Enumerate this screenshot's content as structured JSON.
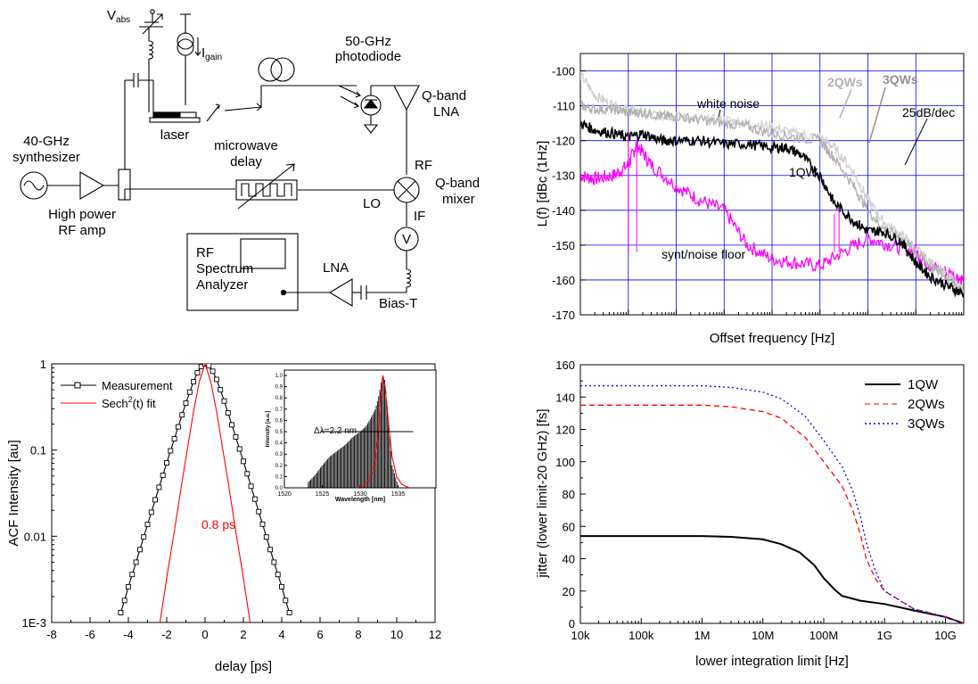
{
  "schematic": {
    "synth_label": [
      "40-GHz",
      "synthesizer"
    ],
    "amp_label": [
      "High power",
      "RF amp"
    ],
    "vabs_main": "V",
    "vabs_sub": "abs",
    "igain_main": "I",
    "igain_sub": "gain",
    "laser_label": "laser",
    "photodiode_label": [
      "50-GHz",
      "photodiode"
    ],
    "qlna_label": [
      "Q-band",
      "LNA"
    ],
    "delay_label": [
      "microwave",
      "delay"
    ],
    "rf_port": "RF",
    "mixer_label": [
      "Q-band",
      "mixer"
    ],
    "lo_port": "LO",
    "if_port": "IF",
    "voltmeter": "V",
    "lna_label": "LNA",
    "biast_label": "Bias-T",
    "analyzer_label": [
      "RF",
      "Spectrum",
      "Analyzer"
    ]
  },
  "chart_data": [
    {
      "type": "line",
      "id": "acf",
      "xlabel": "delay [ps]",
      "ylabel": "ACF Intensity [au]",
      "xlim": [
        -8,
        12
      ],
      "ylim": [
        0.001,
        1
      ],
      "yscale": "log",
      "xticks": [
        "-8",
        "-6",
        "-4",
        "-2",
        "0",
        "2",
        "4",
        "6",
        "8",
        "10",
        "12"
      ],
      "yticks": [
        "1E-3",
        "0.01",
        "0.1",
        "1"
      ],
      "legend": [
        {
          "label_pre": "Measurement",
          "label_sup": "",
          "label_post": "",
          "color": "#000000"
        },
        {
          "label_pre": "Sech",
          "label_sup": "2",
          "label_post": "(t) fit",
          "color": "#ff0000"
        }
      ],
      "annotation": "0.8 ps",
      "series": [
        {
          "name": "Measurement",
          "color": "#000000",
          "marker": "square",
          "x": [
            -4.4,
            -4.2,
            -4.0,
            -3.8,
            -3.6,
            -3.4,
            -3.2,
            -3.0,
            -2.8,
            -2.6,
            -2.4,
            -2.2,
            -2.0,
            -1.8,
            -1.6,
            -1.4,
            -1.2,
            -1.0,
            -0.8,
            -0.6,
            -0.4,
            -0.2,
            0.0,
            0.2,
            0.4,
            0.6,
            0.8,
            1.0,
            1.2,
            1.4,
            1.6,
            1.8,
            2.0,
            2.2,
            2.4,
            2.6,
            2.8,
            3.0,
            3.2,
            3.4,
            3.6,
            3.8,
            4.0,
            4.2,
            4.4
          ],
          "y": [
            0.0013,
            0.0018,
            0.0026,
            0.0036,
            0.005,
            0.007,
            0.0098,
            0.0137,
            0.019,
            0.0265,
            0.037,
            0.051,
            0.071,
            0.098,
            0.135,
            0.186,
            0.256,
            0.35,
            0.47,
            0.62,
            0.79,
            0.93,
            1.0,
            0.95,
            0.82,
            0.66,
            0.5,
            0.37,
            0.27,
            0.196,
            0.142,
            0.103,
            0.074,
            0.053,
            0.038,
            0.027,
            0.0193,
            0.0138,
            0.0098,
            0.007,
            0.005,
            0.0036,
            0.0026,
            0.0018,
            0.0013
          ]
        },
        {
          "name": "Sech2(t) fit",
          "color": "#ff0000",
          "marker": "none",
          "x": [
            -2.35,
            -2.0,
            -1.6,
            -1.2,
            -0.9,
            -0.6,
            -0.3,
            0.0,
            0.3,
            0.6,
            0.9,
            1.2,
            1.6,
            2.0,
            2.35
          ],
          "y": [
            0.001,
            0.0033,
            0.0115,
            0.043,
            0.11,
            0.28,
            0.62,
            1.0,
            0.62,
            0.28,
            0.11,
            0.043,
            0.0115,
            0.0033,
            0.001
          ]
        }
      ],
      "inset": {
        "xlabel": "Wavelength [nm]",
        "ylabel": "Intensity [a.u.]",
        "xlim": [
          1520,
          1540
        ],
        "ylim": [
          0,
          1.0
        ],
        "xticks": [
          "1520",
          "1525",
          "1530",
          "1535"
        ],
        "yticks": [
          "0.0",
          "0.1",
          "0.2",
          "0.3",
          "0.4",
          "0.5",
          "0.6",
          "0.7",
          "0.8",
          "0.9",
          "1.0"
        ],
        "annotation": "Δλ=2.2 nm",
        "fwhm_level": 0.5,
        "fwhm_x": [
          1524.8,
          1537.0
        ],
        "spectrum": {
          "x": [
            1523.0,
            1524.0,
            1525.0,
            1526.0,
            1527.0,
            1528.0,
            1529.0,
            1530.0,
            1530.8,
            1531.4,
            1532.0,
            1532.4,
            1532.8,
            1533.0,
            1533.3,
            1533.7,
            1534.2,
            1535.0
          ],
          "y": [
            0.04,
            0.11,
            0.2,
            0.28,
            0.33,
            0.38,
            0.45,
            0.5,
            0.55,
            0.62,
            0.7,
            0.8,
            0.95,
            1.0,
            0.95,
            0.6,
            0.2,
            0.02
          ]
        },
        "fit": {
          "x": [
            1529.5,
            1530.5,
            1531.2,
            1531.8,
            1532.3,
            1532.7,
            1533.0,
            1533.3,
            1533.7,
            1534.2,
            1534.8,
            1535.5,
            1536.5
          ],
          "y": [
            0.0,
            0.02,
            0.07,
            0.18,
            0.42,
            0.82,
            1.0,
            0.9,
            0.6,
            0.28,
            0.1,
            0.03,
            0.0
          ]
        }
      }
    },
    {
      "type": "line",
      "id": "phase-noise",
      "xlabel": "Offset frequency [Hz]",
      "ylabel": "L(f) [dBc (1Hz]",
      "xscale": "log",
      "xlim": [
        10,
        1000000000
      ],
      "ylim": [
        -170,
        -95
      ],
      "yticks": [
        "-100",
        "-110",
        "-120",
        "-130",
        "-140",
        "-150",
        "-160",
        "-170"
      ],
      "annotations": [
        "white noise",
        "2QWs",
        "3QWs",
        "25dB/dec",
        "1QW",
        "synt/noise floor"
      ],
      "series": [
        {
          "name": "1QW",
          "color": "#000000",
          "x": [
            10,
            20,
            50,
            100,
            200,
            500,
            1000,
            3000,
            10000,
            30000,
            100000,
            200000,
            400000,
            1000000,
            2000000,
            5000000,
            10000000,
            20000000,
            50000000,
            100000000,
            200000000,
            500000000,
            1000000000
          ],
          "y": [
            -115,
            -117,
            -118,
            -119,
            -118,
            -120,
            -120,
            -120,
            -121,
            -121,
            -122,
            -122,
            -124,
            -130,
            -138,
            -143,
            -146,
            -146,
            -149,
            -155,
            -159,
            -162,
            -164
          ]
        },
        {
          "name": "2QWs",
          "color": "#b0b0b0",
          "x": [
            10,
            20,
            50,
            100,
            200,
            500,
            1000,
            3000,
            10000,
            30000,
            100000,
            300000,
            1000000,
            2000000,
            5000000,
            10000000,
            20000000,
            50000000,
            100000000,
            200000000,
            500000000,
            1000000000
          ],
          "y": [
            -110,
            -111,
            -111,
            -112,
            -112,
            -113,
            -113,
            -114,
            -115,
            -116,
            -118,
            -119,
            -120,
            -125,
            -133,
            -140,
            -145,
            -148,
            -152,
            -156,
            -160,
            -164
          ]
        },
        {
          "name": "3QWs",
          "color": "#d0d0d0",
          "x": [
            10,
            20,
            50,
            100,
            200,
            500,
            1000,
            3000,
            10000,
            30000,
            100000,
            300000,
            1000000,
            2000000,
            5000000,
            10000000,
            20000000,
            50000000,
            100000000,
            200000000,
            500000000,
            1000000000
          ],
          "y": [
            -101,
            -107,
            -110,
            -111,
            -112,
            -113,
            -113,
            -114,
            -114,
            -115,
            -116,
            -118,
            -119,
            -122,
            -129,
            -137,
            -143,
            -147,
            -151,
            -155,
            -159,
            -163
          ]
        },
        {
          "name": "synt/noise floor",
          "color": "#ff00ff",
          "x": [
            10,
            20,
            50,
            100,
            150,
            300,
            1000,
            3000,
            10000,
            30000,
            100000,
            300000,
            1000000,
            3000000,
            10000000,
            30000000,
            100000000,
            200000000,
            500000000,
            1000000000
          ],
          "y": [
            -130,
            -131,
            -130,
            -127,
            -121,
            -127,
            -133,
            -137,
            -140,
            -150,
            -154,
            -155,
            -156,
            -152,
            -148,
            -150,
            -152,
            -156,
            -158,
            -160
          ]
        }
      ]
    },
    {
      "type": "line",
      "id": "jitter",
      "xlabel": "lower integration limit [Hz]",
      "ylabel": "jitter (lower limit-20 GHz) [fs]",
      "xscale": "log",
      "xlim": [
        10000,
        20000000000
      ],
      "ylim": [
        0,
        160
      ],
      "xticks": [
        "10k",
        "100k",
        "1M",
        "10M",
        "100M",
        "1G",
        "10G"
      ],
      "yticks": [
        "0",
        "20",
        "40",
        "60",
        "80",
        "100",
        "120",
        "140",
        "160"
      ],
      "series": [
        {
          "name": "1QW",
          "color": "#000000",
          "dash": "solid",
          "x": [
            10000,
            100000,
            1000000,
            3000000,
            10000000,
            20000000,
            40000000,
            70000000,
            100000000,
            150000000,
            200000000,
            400000000,
            1000000000,
            3000000000,
            10000000000,
            20000000000
          ],
          "y": [
            54,
            54,
            54,
            53.5,
            52,
            49,
            44,
            36,
            28,
            21,
            17,
            14,
            12,
            8,
            4,
            0
          ]
        },
        {
          "name": "2QWs",
          "color": "#ff0000",
          "dash": "dashed",
          "x": [
            10000,
            100000,
            1000000,
            3000000,
            10000000,
            20000000,
            50000000,
            100000000,
            200000000,
            300000000,
            400000000,
            500000000,
            700000000,
            1000000000,
            3000000000,
            10000000000,
            20000000000
          ],
          "y": [
            135,
            135,
            135,
            134,
            131,
            127,
            115,
            100,
            85,
            70,
            55,
            40,
            28,
            20,
            9,
            4,
            0
          ]
        },
        {
          "name": "3QWs",
          "color": "#0000ff",
          "dash": "dotted",
          "x": [
            10000,
            100000,
            1000000,
            3000000,
            10000000,
            20000000,
            50000000,
            100000000,
            200000000,
            300000000,
            400000000,
            500000000,
            700000000,
            1000000000,
            3000000000,
            10000000000,
            20000000000
          ],
          "y": [
            147,
            147,
            147,
            146,
            143,
            139,
            128,
            113,
            97,
            82,
            66,
            50,
            33,
            20,
            9,
            4,
            0
          ]
        }
      ]
    }
  ]
}
